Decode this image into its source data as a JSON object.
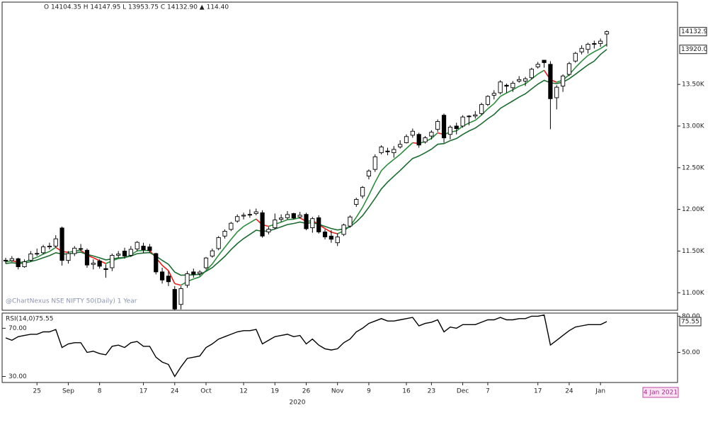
{
  "chart_data": [
    {
      "type": "candlestick",
      "subtitle": "O 14104.35 H 14147.95 L 13953.75 C 14132.90 ▲ 114.40",
      "watermark": "@ChartNexus NSE NIFTY 50(Daily) 1 Year",
      "x_axis_label": "2020",
      "date_label": "4 Jan 2021",
      "categories": [
        null,
        null,
        null,
        null,
        null,
        "25",
        null,
        null,
        null,
        null,
        "Sep",
        null,
        null,
        null,
        null,
        "8",
        null,
        null,
        null,
        null,
        null,
        null,
        "17",
        null,
        null,
        null,
        null,
        "24",
        null,
        null,
        null,
        null,
        "Oct",
        null,
        null,
        null,
        null,
        null,
        "12",
        null,
        null,
        null,
        null,
        "19",
        null,
        null,
        null,
        null,
        "26",
        null,
        null,
        null,
        null,
        "Nov",
        null,
        null,
        null,
        null,
        "9",
        null,
        null,
        null,
        null,
        null,
        "16",
        null,
        null,
        null,
        "23",
        null,
        null,
        null,
        null,
        "Dec",
        null,
        null,
        null,
        "7",
        null,
        null,
        null,
        null,
        null,
        null,
        null,
        "17",
        null,
        null,
        null,
        null,
        "24",
        null,
        null,
        null,
        null,
        "Jan",
        null
      ],
      "open": [
        11390,
        11385,
        11408,
        11312,
        11390,
        11470,
        11480,
        11550,
        11560,
        11777,
        11388,
        11470,
        11530,
        11510,
        11340,
        11380,
        11290,
        11300,
        11450,
        11500,
        11450,
        11525,
        11560,
        11550,
        11470,
        11250,
        11200,
        11040,
        10860,
        11090,
        11250,
        11230,
        11300,
        11440,
        11530,
        11680,
        11760,
        11860,
        11920,
        11940,
        11950,
        11960,
        11730,
        11780,
        11880,
        11900,
        11950,
        11910,
        11940,
        11780,
        11900,
        11730,
        11680,
        11600,
        11700,
        11800,
        12060,
        12160,
        12400,
        12480,
        12680,
        12700,
        12680,
        12750,
        12800,
        12890,
        12900,
        12810,
        12880,
        12960,
        13130,
        12900,
        13000,
        13000,
        13120,
        13120,
        13150,
        13260,
        13370,
        13400,
        13490,
        13460,
        13540,
        13540,
        13580,
        13710,
        13790,
        13741,
        13340,
        13480,
        13620,
        13780,
        13890,
        13920,
        13990,
        13990,
        14104.35
      ],
      "high": [
        11420,
        11440,
        11420,
        11400,
        11500,
        11530,
        11575,
        11600,
        11690,
        11794,
        11500,
        11560,
        11585,
        11530,
        11400,
        11400,
        11340,
        11470,
        11500,
        11540,
        11560,
        11620,
        11600,
        11585,
        11480,
        11300,
        11260,
        11080,
        11080,
        11260,
        11290,
        11270,
        11430,
        11530,
        11680,
        11760,
        11850,
        11940,
        11960,
        12000,
        12010,
        11990,
        11790,
        11950,
        11940,
        11980,
        11960,
        11970,
        11960,
        11910,
        11930,
        11760,
        11750,
        11710,
        11830,
        11930,
        12140,
        12280,
        12480,
        12660,
        12770,
        12740,
        12760,
        12830,
        12900,
        12970,
        12920,
        12880,
        12950,
        13080,
        13150,
        13010,
        13040,
        13130,
        13130,
        13180,
        13280,
        13370,
        13430,
        13550,
        13510,
        13540,
        13600,
        13590,
        13700,
        13770,
        13790,
        13778,
        13490,
        13620,
        13770,
        13890,
        13970,
        14000,
        14025,
        14050,
        14147.95
      ],
      "low": [
        11350,
        11370,
        11280,
        11300,
        11370,
        11440,
        11460,
        11520,
        11540,
        11326,
        11350,
        11440,
        11500,
        11300,
        11280,
        11290,
        11180,
        11260,
        11420,
        11410,
        11430,
        11500,
        11480,
        11480,
        11220,
        11110,
        11080,
        10790,
        10800,
        11060,
        11180,
        11200,
        11280,
        11420,
        11510,
        11650,
        11740,
        11840,
        11880,
        11900,
        11930,
        11660,
        11700,
        11760,
        11850,
        11880,
        11880,
        11890,
        11750,
        11720,
        11710,
        11640,
        11600,
        11560,
        11680,
        11780,
        12030,
        12130,
        12360,
        12450,
        12660,
        12650,
        12620,
        12730,
        12790,
        12860,
        12740,
        12790,
        12840,
        12930,
        12800,
        12840,
        12900,
        12980,
        13010,
        13090,
        13130,
        13240,
        13320,
        13380,
        13400,
        13410,
        13520,
        13480,
        13560,
        13690,
        13700,
        12962,
        13200,
        13410,
        13600,
        13760,
        13860,
        13870,
        13930,
        13950,
        13953.75
      ],
      "close": [
        11385,
        11409,
        11312,
        11372,
        11466,
        11472,
        11550,
        11559,
        11647,
        11388,
        11470,
        11535,
        11527,
        11333,
        11355,
        11318,
        11278,
        11449,
        11464,
        11440,
        11521,
        11605,
        11516,
        11505,
        11250,
        11153,
        11132,
        10805,
        11050,
        11228,
        11222,
        11248,
        11417,
        11503,
        11662,
        11738,
        11834,
        11914,
        11930,
        11934,
        11971,
        11680,
        11762,
        11873,
        11897,
        11938,
        11896,
        11930,
        11768,
        11889,
        11730,
        11670,
        11642,
        11669,
        11813,
        11909,
        12120,
        12264,
        12461,
        12631,
        12749,
        12691,
        12720,
        12780,
        12874,
        12938,
        12772,
        12859,
        12926,
        13055,
        12858,
        12987,
        12969,
        13109,
        13114,
        13134,
        13258,
        13356,
        13393,
        13529,
        13478,
        13514,
        13558,
        13567,
        13682,
        13741,
        13761,
        13328,
        13466,
        13601,
        13749,
        13873,
        13932,
        13982,
        13982,
        14019,
        14132.9
      ],
      "up_color": "#ffffff",
      "down_color": "#000000",
      "series": [
        {
          "color": "#2e8b3e",
          "falling_color": "#e0201b",
          "values": [
            11370,
            11385,
            11365,
            11368,
            11400,
            11425,
            11465,
            11495,
            11545,
            11495,
            11485,
            11500,
            11510,
            11450,
            11420,
            11385,
            11350,
            11383,
            11410,
            11420,
            11453,
            11503,
            11507,
            11507,
            11420,
            11330,
            11265,
            11110,
            11090,
            11135,
            11165,
            11190,
            11265,
            11345,
            11450,
            11545,
            11640,
            11730,
            11795,
            11840,
            11885,
            11815,
            11797,
            11822,
            11847,
            11877,
            11883,
            11899,
            11855,
            11866,
            11820,
            11770,
            11727,
            11708,
            11743,
            11798,
            11905,
            12025,
            12170,
            12325,
            12465,
            12540,
            12600,
            12660,
            12731,
            12800,
            12791,
            12814,
            12851,
            12919,
            12899,
            12928,
            12942,
            12998,
            13037,
            13069,
            13132,
            13207,
            13269,
            13356,
            13397,
            13436,
            13477,
            13507,
            13565,
            13624,
            13670,
            13556,
            13526,
            13551,
            13617,
            13702,
            13779,
            13847,
            13892,
            13930,
            13980
          ]
        },
        {
          "color": "#1e6b32",
          "values": [
            11350,
            11360,
            11352,
            11355,
            11375,
            11393,
            11420,
            11445,
            11480,
            11465,
            11466,
            11478,
            11487,
            11460,
            11441,
            11419,
            11394,
            11405,
            11417,
            11422,
            11440,
            11469,
            11477,
            11482,
            11440,
            11388,
            11342,
            11248,
            11210,
            11213,
            11215,
            11221,
            11257,
            11302,
            11368,
            11436,
            11518,
            11590,
            11650,
            11700,
            11750,
            11738,
            11742,
            11765,
            11791,
            11818,
            11831,
            11848,
            11833,
            11843,
            11822,
            11796,
            11771,
            11753,
            11766,
            11792,
            11851,
            11925,
            12025,
            12134,
            12245,
            12328,
            12398,
            12467,
            12540,
            12611,
            12640,
            12679,
            12723,
            12781,
            12790,
            12825,
            12851,
            12899,
            12941,
            12976,
            13029,
            13088,
            13139,
            13212,
            13257,
            13301,
            13347,
            13386,
            13446,
            13503,
            13549,
            13519,
            13510,
            13527,
            13567,
            13622,
            13678,
            13735,
            13779,
            13860,
            13920
          ]
        }
      ],
      "ylim": [
        10790,
        14470
      ],
      "yticks": [
        {
          "value": 11000,
          "label": "11.00K"
        },
        {
          "value": 11500,
          "label": "11.50K"
        },
        {
          "value": 12000,
          "label": "12.00K"
        },
        {
          "value": 12500,
          "label": "12.50K"
        },
        {
          "value": 13000,
          "label": "13.00K"
        },
        {
          "value": 13500,
          "label": "13.50K"
        }
      ],
      "price_tags": [
        {
          "value": 14132.9,
          "label": "14132.9"
        },
        {
          "value": 13920,
          "label": "13920.0"
        }
      ]
    },
    {
      "type": "line",
      "title": "RSI(14,0)75.55",
      "color": "#000000",
      "values": [
        62,
        60,
        63,
        64,
        65,
        65,
        67,
        67,
        69,
        54,
        57,
        58,
        58,
        50,
        51,
        49,
        48,
        55,
        56,
        54,
        58,
        59,
        55,
        55,
        46,
        42,
        40,
        30,
        38,
        45,
        46,
        47,
        54,
        57,
        61,
        63,
        65,
        67,
        68,
        68,
        69,
        57,
        60,
        63,
        64,
        65,
        63,
        64,
        57,
        61,
        56,
        53,
        52,
        53,
        58,
        61,
        67,
        70,
        74,
        76,
        78,
        76,
        76,
        77,
        78,
        79,
        72,
        74,
        75,
        77,
        67,
        71,
        70,
        73,
        73,
        73,
        75,
        77,
        77,
        79,
        77,
        77,
        78,
        78,
        80,
        80,
        81,
        56,
        60,
        64,
        68,
        71,
        72,
        73,
        73,
        73,
        75.55
      ],
      "ylim": [
        25,
        82
      ],
      "yticks": [
        {
          "value": 80,
          "label": "80.00"
        },
        {
          "value": 50,
          "label": "50.00"
        }
      ],
      "levels": [
        {
          "value": 70,
          "label": "70.00"
        },
        {
          "value": 30,
          "label": "30.00"
        }
      ]
    }
  ]
}
